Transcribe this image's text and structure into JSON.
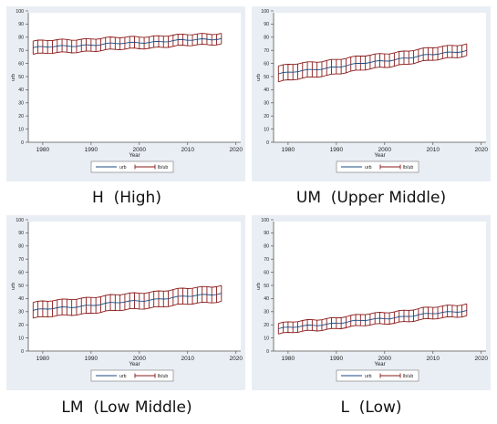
{
  "colors": {
    "panel_bg": "#e9eef4",
    "plot_bg": "#ffffff",
    "series_line": "#1a4a80",
    "band": "#8a1a1a",
    "axis": "#555555",
    "text": "#222222"
  },
  "x_axis_title": "Year",
  "y_axis_title": "urb",
  "legend_labels": [
    "urb",
    "lb/ub"
  ],
  "captions": [
    "H  (High)",
    "UM  (Upper Middle)",
    "LM  (Low Middle)",
    "L  (Low)"
  ],
  "chart_data": [
    {
      "type": "line",
      "title": "",
      "xlabel": "Year",
      "ylabel": "urb",
      "x_ticks": [
        1980,
        1990,
        2000,
        2010,
        2020
      ],
      "y_ticks": [
        0,
        10,
        20,
        30,
        40,
        50,
        60,
        70,
        80,
        90,
        100
      ],
      "xlim": [
        1977,
        2021
      ],
      "ylim": [
        0,
        100
      ],
      "x_range": [
        1978,
        2017
      ],
      "series": [
        {
          "name": "urb",
          "start": 72,
          "end": 79
        },
        {
          "name": "lb/ub",
          "lower_start": 67,
          "lower_end": 75,
          "upper_start": 77,
          "upper_end": 83
        }
      ],
      "grid": false,
      "legend": "bottom"
    },
    {
      "type": "line",
      "title": "",
      "xlabel": "Year",
      "ylabel": "urb",
      "x_ticks": [
        1980,
        1990,
        2000,
        2010,
        2020
      ],
      "y_ticks": [
        0,
        10,
        20,
        30,
        40,
        50,
        60,
        70,
        80,
        90,
        100
      ],
      "xlim": [
        1977,
        2021
      ],
      "ylim": [
        0,
        100
      ],
      "x_range": [
        1978,
        2017
      ],
      "series": [
        {
          "name": "urb",
          "start": 52,
          "end": 70
        },
        {
          "name": "lb/ub",
          "lower_start": 46,
          "lower_end": 66,
          "upper_start": 58,
          "upper_end": 75
        }
      ],
      "grid": false,
      "legend": "bottom"
    },
    {
      "type": "line",
      "title": "",
      "xlabel": "Year",
      "ylabel": "urb",
      "x_ticks": [
        1980,
        1990,
        2000,
        2010,
        2020
      ],
      "y_ticks": [
        0,
        10,
        20,
        30,
        40,
        50,
        60,
        70,
        80,
        90,
        100
      ],
      "xlim": [
        1977,
        2021
      ],
      "ylim": [
        0,
        100
      ],
      "x_range": [
        1978,
        2017
      ],
      "series": [
        {
          "name": "urb",
          "start": 31,
          "end": 44
        },
        {
          "name": "lb/ub",
          "lower_start": 25,
          "lower_end": 38,
          "upper_start": 37,
          "upper_end": 50
        }
      ],
      "grid": false,
      "legend": "bottom"
    },
    {
      "type": "line",
      "title": "",
      "xlabel": "Year",
      "ylabel": "urb",
      "x_ticks": [
        1980,
        1990,
        2000,
        2010,
        2020
      ],
      "y_ticks": [
        0,
        10,
        20,
        30,
        40,
        50,
        60,
        70,
        80,
        90,
        100
      ],
      "xlim": [
        1977,
        2021
      ],
      "ylim": [
        0,
        100
      ],
      "x_range": [
        1978,
        2017
      ],
      "series": [
        {
          "name": "urb",
          "start": 17,
          "end": 31
        },
        {
          "name": "lb/ub",
          "lower_start": 13,
          "lower_end": 27,
          "upper_start": 21,
          "upper_end": 36
        }
      ],
      "grid": false,
      "legend": "bottom"
    }
  ]
}
